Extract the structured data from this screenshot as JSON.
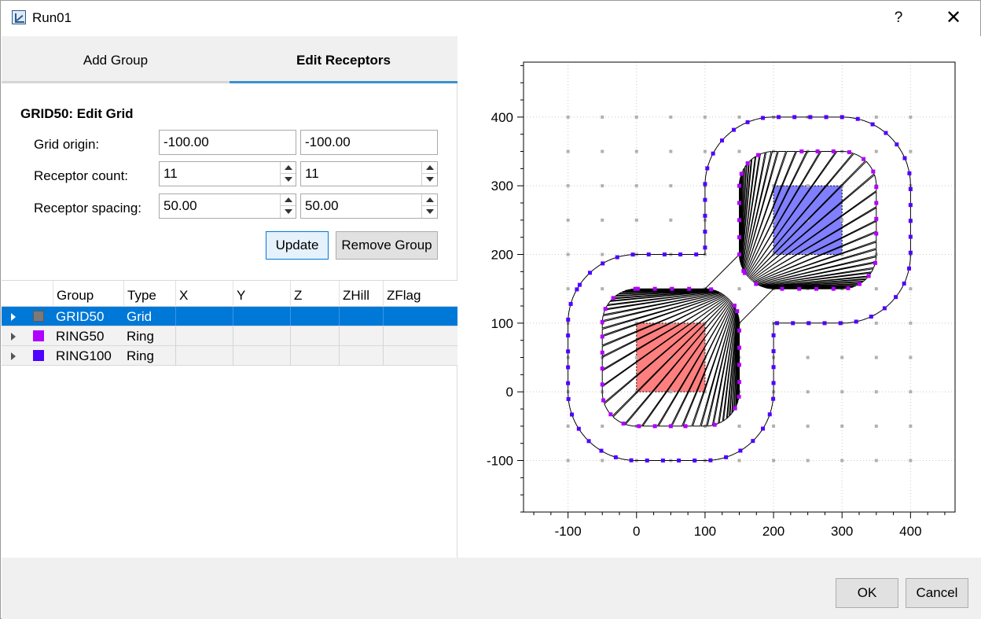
{
  "window": {
    "title": "Run01",
    "help_label": "?",
    "close_label": "✕"
  },
  "tabs": [
    {
      "label": "Add Group",
      "active": false
    },
    {
      "label": "Edit Receptors",
      "active": true
    }
  ],
  "edit_grid": {
    "title": "GRID50: Edit Grid",
    "origin_label": "Grid origin:",
    "origin_x": "-100.00",
    "origin_y": "-100.00",
    "count_label": "Receptor count:",
    "count_x": "11",
    "count_y": "11",
    "spacing_label": "Receptor spacing:",
    "spacing_x": "50.00",
    "spacing_y": "50.00",
    "update_label": "Update",
    "remove_label": "Remove Group"
  },
  "table": {
    "columns": [
      "Group",
      "Type",
      "X",
      "Y",
      "Z",
      "ZHill",
      "ZFlag"
    ],
    "rows": [
      {
        "group": "GRID50",
        "type": "Grid",
        "color": "#7a7a7a",
        "selected": true
      },
      {
        "group": "RING50",
        "type": "Ring",
        "color": "#b000ff",
        "selected": false
      },
      {
        "group": "RING100",
        "type": "Ring",
        "color": "#5000ff",
        "selected": false
      }
    ]
  },
  "footer": {
    "ok_label": "OK",
    "cancel_label": "Cancel"
  },
  "chart_data": {
    "type": "scatter",
    "title": "",
    "xlabel": "",
    "ylabel": "",
    "xlim": [
      -165,
      465
    ],
    "ylim": [
      -175,
      480
    ],
    "xticks": [
      "-100",
      "0",
      "100",
      "200",
      "300",
      "400"
    ],
    "yticks": [
      "-100",
      "0",
      "100",
      "200",
      "300",
      "400"
    ],
    "grid": true,
    "grid_series": {
      "name": "GRID50",
      "color": "#b0b0b0",
      "origin": [
        -100,
        -100
      ],
      "spacing": 50,
      "count": 11
    },
    "sources": [
      {
        "x0": 0,
        "y0": 0,
        "x1": 100,
        "y1": 100,
        "color": "#ff7f7f"
      },
      {
        "x0": 200,
        "y0": 200,
        "x1": 300,
        "y1": 300,
        "color": "#7f7fff"
      }
    ],
    "rings": [
      {
        "name": "RING50",
        "distance": 50,
        "color": "#b000ff"
      },
      {
        "name": "RING100",
        "distance": 100,
        "color": "#5000ff"
      }
    ]
  }
}
